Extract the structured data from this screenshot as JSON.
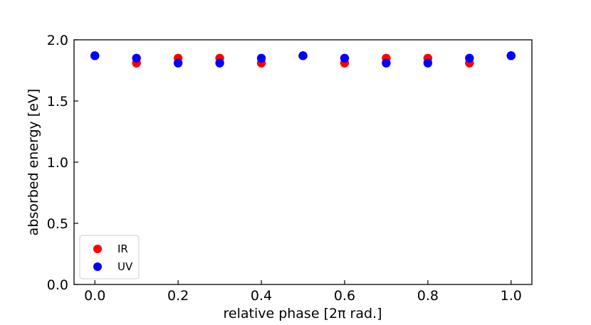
{
  "chart_data": {
    "type": "scatter",
    "title": "",
    "xlabel": "relative phase [2π rad.]",
    "ylabel": "absorbed energy [eV]",
    "xlim": [
      -0.05,
      1.05
    ],
    "ylim": [
      0.0,
      2.0
    ],
    "xticks": [
      "0.0",
      "0.2",
      "0.4",
      "0.6",
      "0.8",
      "1.0"
    ],
    "yticks": [
      "0.0",
      "0.5",
      "1.0",
      "1.5",
      "2.0"
    ],
    "grid": false,
    "legend_position": "bottom-left",
    "series": [
      {
        "name": "IR",
        "color": "#ff0000",
        "x": [
          0.0,
          0.1,
          0.2,
          0.3,
          0.4,
          0.5,
          0.6,
          0.7,
          0.8,
          0.9,
          1.0
        ],
        "y": [
          1.87,
          1.81,
          1.85,
          1.85,
          1.81,
          1.87,
          1.81,
          1.85,
          1.85,
          1.81,
          1.87
        ]
      },
      {
        "name": "UV",
        "color": "#0000ff",
        "x": [
          0.0,
          0.1,
          0.2,
          0.3,
          0.4,
          0.5,
          0.6,
          0.7,
          0.8,
          0.9,
          1.0
        ],
        "y": [
          1.87,
          1.85,
          1.81,
          1.81,
          1.85,
          1.87,
          1.85,
          1.81,
          1.81,
          1.85,
          1.87
        ]
      }
    ]
  }
}
